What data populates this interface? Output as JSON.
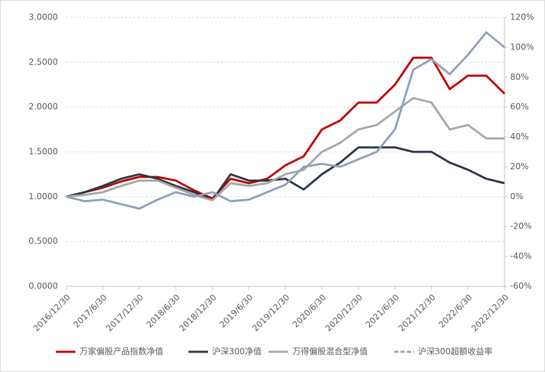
{
  "chart_data": {
    "type": "line",
    "categories": [
      "2016/12/30",
      null,
      "2017/6/30",
      null,
      "2017/12/30",
      null,
      "2018/6/30",
      null,
      "2018/12/30",
      null,
      "2019/6/30",
      null,
      "2019/12/30",
      null,
      "2020/6/30",
      null,
      "2020/12/30",
      null,
      "2021/6/30",
      null,
      "2021/12/30",
      null,
      "2022/6/30",
      null,
      "2022/12/30"
    ],
    "series": [
      {
        "name": "万家偏股产品指数净值",
        "color": "#c00000",
        "values": [
          1.0,
          1.05,
          1.1,
          1.17,
          1.22,
          1.22,
          1.18,
          1.07,
          0.98,
          1.2,
          1.15,
          1.2,
          1.35,
          1.45,
          1.75,
          1.85,
          2.05,
          2.05,
          2.25,
          2.55,
          2.55,
          2.2,
          2.35,
          2.35,
          2.15
        ]
      },
      {
        "name": "沪深300净值",
        "color": "#2b3544",
        "values": [
          1.0,
          1.05,
          1.12,
          1.2,
          1.25,
          1.2,
          1.12,
          1.05,
          0.96,
          1.25,
          1.18,
          1.18,
          1.2,
          1.08,
          1.25,
          1.38,
          1.55,
          1.55,
          1.55,
          1.5,
          1.5,
          1.38,
          1.3,
          1.2,
          1.15
        ]
      },
      {
        "name": "万得偏股混合型净值",
        "color": "#a6a6a6",
        "values": [
          1.0,
          1.02,
          1.05,
          1.12,
          1.18,
          1.18,
          1.1,
          1.02,
          0.96,
          1.15,
          1.12,
          1.15,
          1.25,
          1.3,
          1.5,
          1.6,
          1.75,
          1.8,
          1.95,
          2.1,
          2.05,
          1.75,
          1.8,
          1.65,
          1.65
        ]
      },
      {
        "name": "沪深300超额收益率",
        "color": "#8fa0b8",
        "axis": "y2",
        "values": [
          0,
          -3,
          -2,
          -5,
          -8,
          -2,
          3,
          0,
          3,
          -3,
          -2,
          3,
          8,
          20,
          22,
          20,
          25,
          30,
          45,
          85,
          92,
          82,
          95,
          110,
          100
        ]
      }
    ],
    "ylim": [
      0,
      3
    ],
    "yticks": [
      {
        "value": 0,
        "label": "0.0000"
      },
      {
        "value": 0.5,
        "label": "0.5000"
      },
      {
        "value": 1,
        "label": "1.0000"
      },
      {
        "value": 1.5,
        "label": "1.5000"
      },
      {
        "value": 2,
        "label": "2.0000"
      },
      {
        "value": 2.5,
        "label": "2.5000"
      },
      {
        "value": 3,
        "label": "3.0000"
      }
    ],
    "y2lim": [
      -60,
      120
    ],
    "y2ticks": [
      {
        "value": -60,
        "label": "-60%"
      },
      {
        "value": -40,
        "label": "-40%"
      },
      {
        "value": -20,
        "label": "-20%"
      },
      {
        "value": 0,
        "label": "0%"
      },
      {
        "value": 20,
        "label": "20%"
      },
      {
        "value": 40,
        "label": "40%"
      },
      {
        "value": 60,
        "label": "60%"
      },
      {
        "value": 80,
        "label": "80%"
      },
      {
        "value": 100,
        "label": "100%"
      },
      {
        "value": 120,
        "label": "120%"
      }
    ],
    "grid": true,
    "legend": "bottom"
  }
}
